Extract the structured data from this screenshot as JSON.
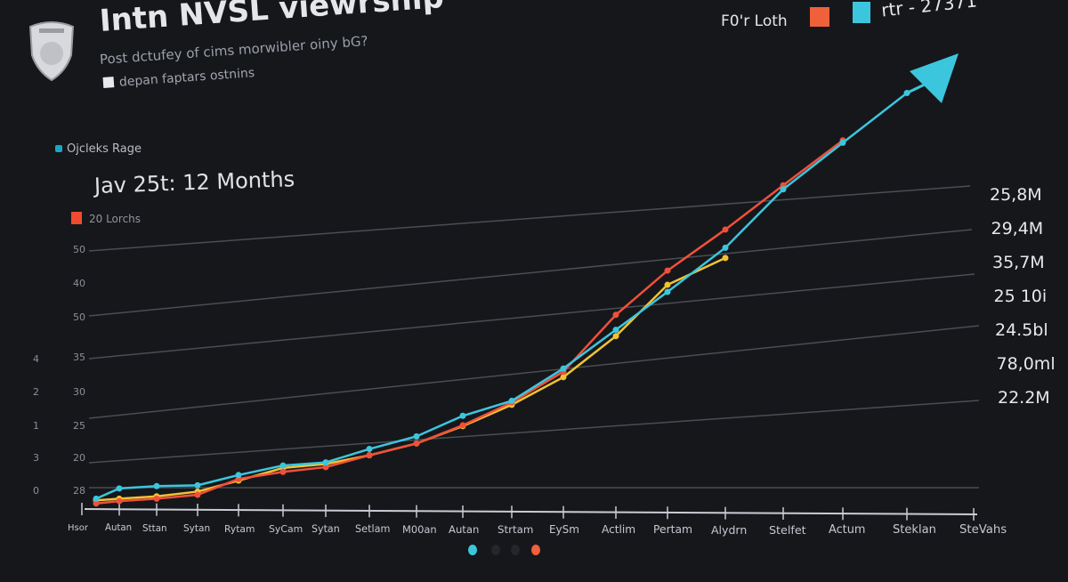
{
  "header": {
    "title": "Intn NVSL viewrship",
    "subtitle": "Post dctufey of cims morwibler oiny bG?",
    "note": "depan faptars ostnins",
    "range_label": "Ojcleks Rage",
    "period": "Jav 25t: 12 Months",
    "count_label": "20 Lorchs"
  },
  "legend": {
    "label_a": "F0'r Loth",
    "label_b": "rtr - 27371",
    "colors": {
      "orange": "#f0603a",
      "cyan": "#3cc6de"
    }
  },
  "chart_data": {
    "type": "line",
    "categories": [
      "Hsor",
      "Autan",
      "Sttan",
      "Sytan",
      "Rytam",
      "SyCam",
      "Sytan",
      "Setlam",
      "M00an",
      "Autan",
      "Strtam",
      "EySm",
      "Actlim",
      "Pertam",
      "Alydrn",
      "Stelfet",
      "Actum",
      "Steklan",
      "SteVahs"
    ],
    "right_axis_labels": [
      "25,8M",
      "29,4M",
      "35,7M",
      "25 10i",
      "24.5bl",
      "78,0ml",
      "22.2M"
    ],
    "left_axis_labels_outer": [
      "4",
      "2",
      "1",
      "3",
      "0"
    ],
    "left_axis_labels_inner": [
      "50",
      "40",
      "50",
      "35",
      "30",
      "25",
      "20",
      "28"
    ],
    "grid": true,
    "trend_arrow": true,
    "ylim": [
      15,
      76
    ],
    "series": [
      {
        "color": "#3cc6de",
        "values": [
          18.6,
          19.9,
          20.2,
          20.3,
          21.6,
          22.8,
          23.2,
          24.9,
          26.5,
          29.1,
          31.0,
          35.1,
          40.0,
          44.8,
          50.4,
          57.8,
          63.7,
          70.0,
          null
        ]
      },
      {
        "color": "#f0503a",
        "values": [
          18.0,
          18.3,
          18.6,
          19.1,
          21.1,
          22.0,
          22.6,
          24.1,
          25.6,
          27.9,
          30.8,
          34.7,
          41.9,
          47.5,
          52.7,
          58.3,
          64.0,
          null,
          null
        ]
      },
      {
        "color": "#f2c232",
        "values": [
          18.4,
          18.6,
          18.9,
          19.5,
          20.9,
          22.5,
          23.0,
          24.1,
          25.6,
          27.8,
          30.5,
          34.0,
          39.2,
          45.7,
          49.1,
          null,
          null,
          null,
          null
        ]
      }
    ],
    "pager": {
      "active_colors": [
        "#3cc6de",
        "#f0603a"
      ]
    }
  }
}
